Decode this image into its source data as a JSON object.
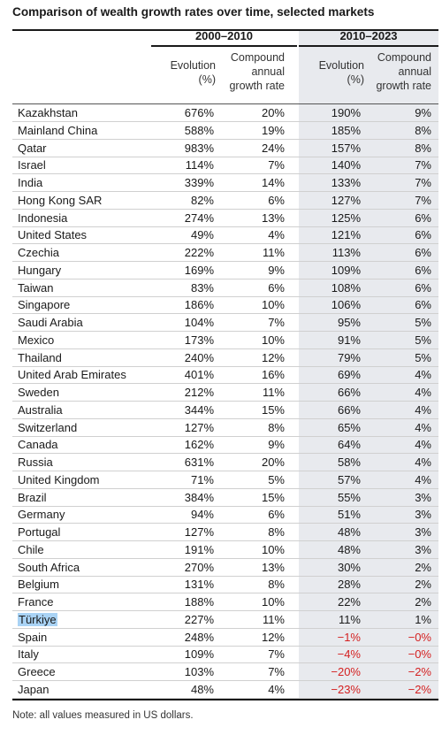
{
  "title": "Comparison of wealth growth rates over time, selected markets",
  "groups": [
    "2000–2010",
    "2010–2023"
  ],
  "columns": {
    "evolution": [
      "Evolution",
      "(%)"
    ],
    "cagr": [
      "Compound",
      "annual",
      "growth rate"
    ]
  },
  "note": "Note: all values measured in US dollars.",
  "highlight_color": "#a9d3f5",
  "negative_color": "#d42020",
  "chart_data": {
    "type": "table",
    "title": "Comparison of wealth growth rates over time, selected markets",
    "column_groups": [
      "2000–2010",
      "2010–2023"
    ],
    "headers": [
      "",
      "Evolution (%)",
      "Compound annual growth rate",
      "Evolution (%)",
      "Compound annual growth rate"
    ],
    "rows": [
      [
        "Kazakhstan",
        "676%",
        "20%",
        "190%",
        "9%"
      ],
      [
        "Mainland China",
        "588%",
        "19%",
        "185%",
        "8%"
      ],
      [
        "Qatar",
        "983%",
        "24%",
        "157%",
        "8%"
      ],
      [
        "Israel",
        "114%",
        "7%",
        "140%",
        "7%"
      ],
      [
        "India",
        "339%",
        "14%",
        "133%",
        "7%"
      ],
      [
        "Hong Kong SAR",
        "82%",
        "6%",
        "127%",
        "7%"
      ],
      [
        "Indonesia",
        "274%",
        "13%",
        "125%",
        "6%"
      ],
      [
        "United States",
        "49%",
        "4%",
        "121%",
        "6%"
      ],
      [
        "Czechia",
        "222%",
        "11%",
        "113%",
        "6%"
      ],
      [
        "Hungary",
        "169%",
        "9%",
        "109%",
        "6%"
      ],
      [
        "Taiwan",
        "83%",
        "6%",
        "108%",
        "6%"
      ],
      [
        "Singapore",
        "186%",
        "10%",
        "106%",
        "6%"
      ],
      [
        "Saudi Arabia",
        "104%",
        "7%",
        "95%",
        "5%"
      ],
      [
        "Mexico",
        "173%",
        "10%",
        "91%",
        "5%"
      ],
      [
        "Thailand",
        "240%",
        "12%",
        "79%",
        "5%"
      ],
      [
        "United Arab Emirates",
        "401%",
        "16%",
        "69%",
        "4%"
      ],
      [
        "Sweden",
        "212%",
        "11%",
        "66%",
        "4%"
      ],
      [
        "Australia",
        "344%",
        "15%",
        "66%",
        "4%"
      ],
      [
        "Switzerland",
        "127%",
        "8%",
        "65%",
        "4%"
      ],
      [
        "Canada",
        "162%",
        "9%",
        "64%",
        "4%"
      ],
      [
        "Russia",
        "631%",
        "20%",
        "58%",
        "4%"
      ],
      [
        "United Kingdom",
        "71%",
        "5%",
        "57%",
        "4%"
      ],
      [
        "Brazil",
        "384%",
        "15%",
        "55%",
        "3%"
      ],
      [
        "Germany",
        "94%",
        "6%",
        "51%",
        "3%"
      ],
      [
        "Portugal",
        "127%",
        "8%",
        "48%",
        "3%"
      ],
      [
        "Chile",
        "191%",
        "10%",
        "48%",
        "3%"
      ],
      [
        "South Africa",
        "270%",
        "13%",
        "30%",
        "2%"
      ],
      [
        "Belgium",
        "131%",
        "8%",
        "28%",
        "2%"
      ],
      [
        "France",
        "188%",
        "10%",
        "22%",
        "2%"
      ],
      [
        "Türkiye",
        "227%",
        "11%",
        "11%",
        "1%"
      ],
      [
        "Spain",
        "248%",
        "12%",
        "−1%",
        "−0%"
      ],
      [
        "Italy",
        "109%",
        "7%",
        "−4%",
        "−0%"
      ],
      [
        "Greece",
        "103%",
        "7%",
        "−20%",
        "−2%"
      ],
      [
        "Japan",
        "48%",
        "4%",
        "−23%",
        "−2%"
      ]
    ],
    "highlighted_row": "Türkiye"
  }
}
